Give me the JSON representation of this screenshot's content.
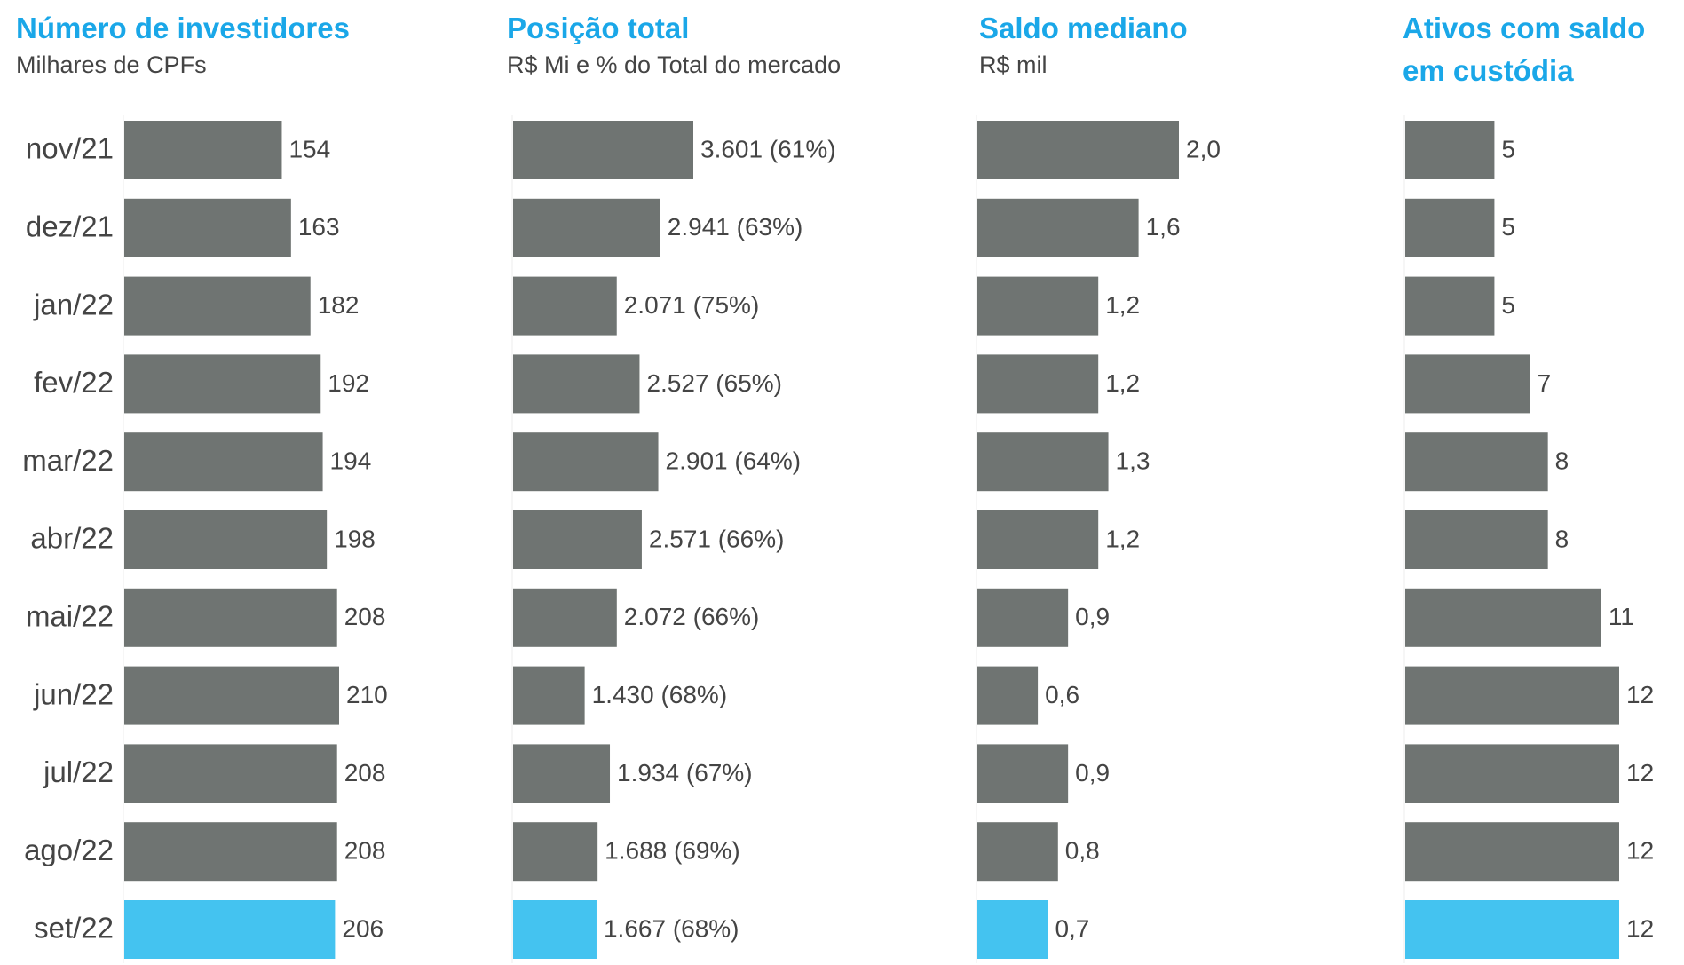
{
  "chart_data": [
    {
      "type": "bar",
      "title": "Número de investidores",
      "subtitle": "Milhares de CPFs",
      "categories": [
        "nov/21",
        "dez/21",
        "jan/22",
        "fev/22",
        "mar/22",
        "abr/22",
        "mai/22",
        "jun/22",
        "jul/22",
        "ago/22",
        "set/22"
      ],
      "values": [
        154,
        163,
        182,
        192,
        194,
        198,
        208,
        210,
        208,
        208,
        206
      ],
      "colors": [
        "#6f7472",
        "#6f7472",
        "#6f7472",
        "#6f7472",
        "#6f7472",
        "#6f7472",
        "#6f7472",
        "#6f7472",
        "#6f7472",
        "#6f7472",
        "#44c3f0"
      ]
    },
    {
      "type": "bar",
      "title": "Posição total",
      "subtitle": "R$ Mi e % do Total do mercado",
      "values": [
        3601,
        2941,
        2071,
        2527,
        2901,
        2571,
        2072,
        1430,
        1934,
        1688,
        1667
      ],
      "value_labels": [
        "3.601 (61%)",
        "2.941 (63%)",
        "2.071 (75%)",
        "2.527 (65%)",
        "2.901 (64%)",
        "2.571 (66%)",
        "2.072 (66%)",
        "1.430 (68%)",
        "1.934 (67%)",
        "1.688 (69%)",
        "1.667 (68%)"
      ],
      "colors": [
        "#6f7472",
        "#6f7472",
        "#6f7472",
        "#6f7472",
        "#6f7472",
        "#6f7472",
        "#6f7472",
        "#6f7472",
        "#6f7472",
        "#6f7472",
        "#44c3f0"
      ]
    },
    {
      "type": "bar",
      "title": "Saldo mediano",
      "subtitle": "R$ mil",
      "values": [
        2.0,
        1.6,
        1.2,
        1.2,
        1.3,
        1.2,
        0.9,
        0.6,
        0.9,
        0.8,
        0.7
      ],
      "value_labels": [
        "2,0",
        "1,6",
        "1,2",
        "1,2",
        "1,3",
        "1,2",
        "0,9",
        "0,6",
        "0,9",
        "0,8",
        "0,7"
      ],
      "colors": [
        "#6f7472",
        "#6f7472",
        "#6f7472",
        "#6f7472",
        "#6f7472",
        "#6f7472",
        "#6f7472",
        "#6f7472",
        "#6f7472",
        "#6f7472",
        "#44c3f0"
      ]
    },
    {
      "type": "bar",
      "title": "Ativos com saldo em custódia",
      "values": [
        5,
        5,
        5,
        7,
        8,
        8,
        11,
        12,
        12,
        12,
        12
      ],
      "colors": [
        "#6f7472",
        "#6f7472",
        "#6f7472",
        "#6f7472",
        "#6f7472",
        "#6f7472",
        "#6f7472",
        "#6f7472",
        "#6f7472",
        "#6f7472",
        "#44c3f0"
      ]
    }
  ]
}
